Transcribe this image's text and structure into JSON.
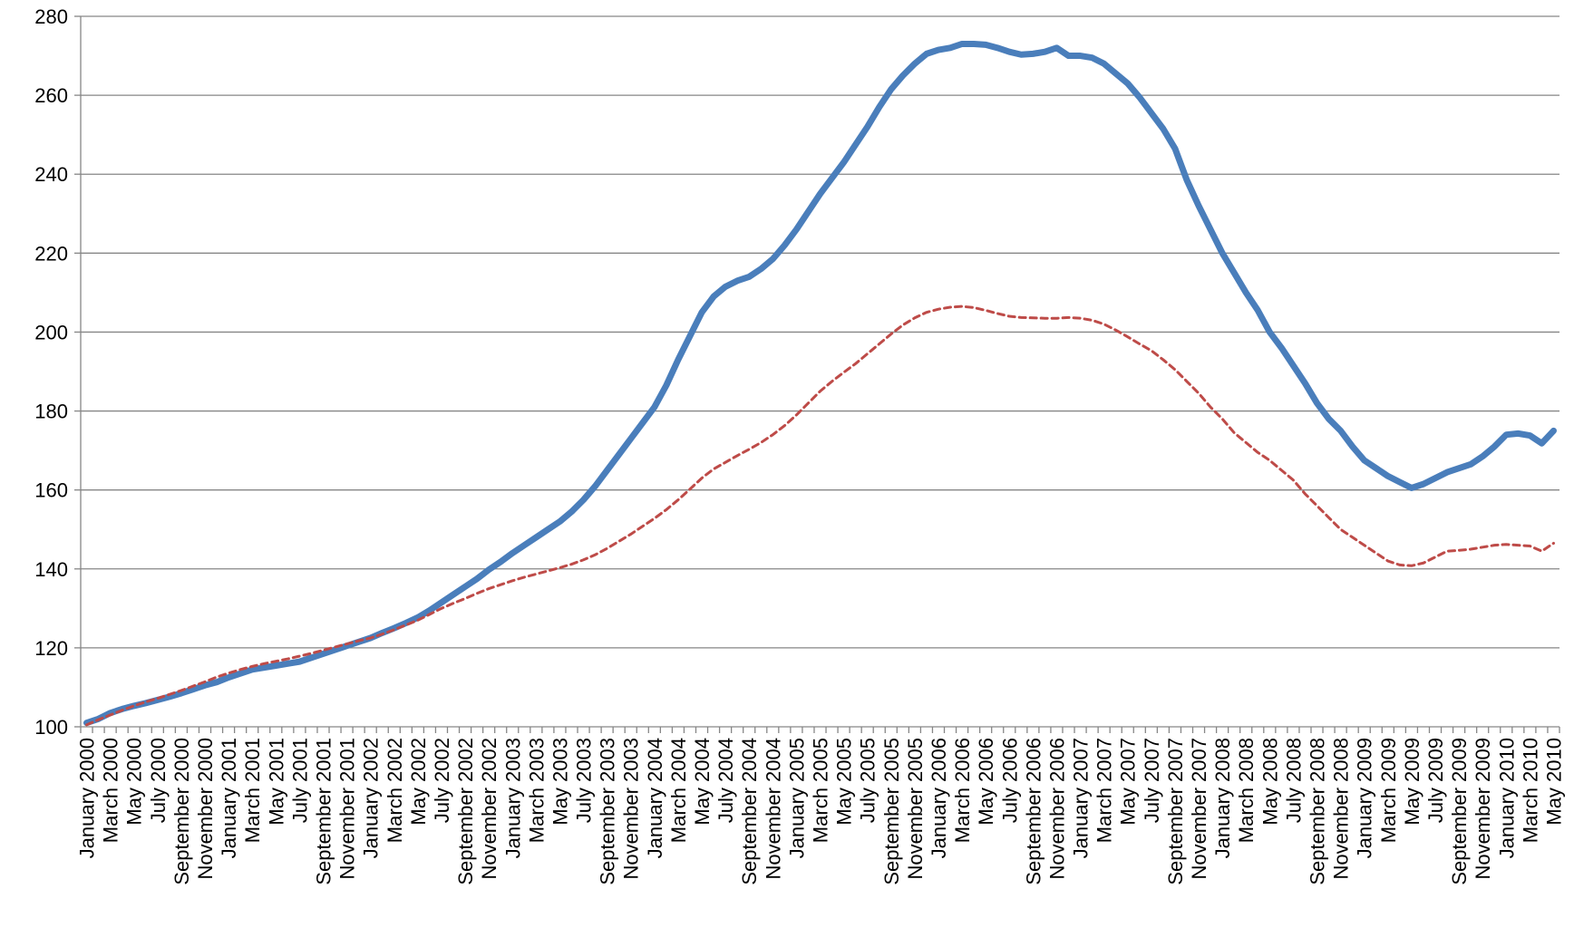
{
  "chart_data": {
    "type": "line",
    "categories": [
      "January 2000",
      null,
      "March 2000",
      null,
      "May 2000",
      null,
      "July 2000",
      null,
      "September 2000",
      null,
      "November 2000",
      null,
      "January 2001",
      null,
      "March 2001",
      null,
      "May 2001",
      null,
      "July 2001",
      null,
      "September 2001",
      null,
      "November 2001",
      null,
      "January 2002",
      null,
      "March 2002",
      null,
      "May 2002",
      null,
      "July 2002",
      null,
      "September 2002",
      null,
      "November 2002",
      null,
      "January 2003",
      null,
      "March 2003",
      null,
      "May 2003",
      null,
      "July 2003",
      null,
      "September 2003",
      null,
      "November 2003",
      null,
      "January 2004",
      null,
      "March 2004",
      null,
      "May 2004",
      null,
      "July 2004",
      null,
      "September 2004",
      null,
      "November 2004",
      null,
      "January 2005",
      null,
      "March 2005",
      null,
      "May 2005",
      null,
      "July 2005",
      null,
      "September 2005",
      null,
      "November 2005",
      null,
      "January 2006",
      null,
      "March 2006",
      null,
      "May 2006",
      null,
      "July 2006",
      null,
      "September 2006",
      null,
      "November 2006",
      null,
      "January 2007",
      null,
      "March 2007",
      null,
      "May 2007",
      null,
      "July 2007",
      null,
      "September 2007",
      null,
      "November 2007",
      null,
      "January 2008",
      null,
      "March 2008",
      null,
      "May 2008",
      null,
      "July 2008",
      null,
      "September 2008",
      null,
      "November 2008",
      null,
      "January 2009",
      null,
      "March 2009",
      null,
      "May 2009",
      null,
      "July 2009",
      null,
      "September 2009",
      null,
      "November 2009",
      null,
      "January 2010",
      null,
      "March 2010",
      null,
      "May 2010"
    ],
    "series": [
      {
        "color": "#4a7ebb",
        "dash": false,
        "values": [
          101,
          102,
          103.5,
          104.5,
          105.3,
          106,
          106.8,
          107.6,
          108.5,
          109.5,
          110.5,
          111.3,
          112.5,
          113.5,
          114.5,
          115,
          115.5,
          116,
          116.5,
          117.5,
          118.5,
          119.5,
          120.5,
          121.5,
          122.5,
          123.8,
          125,
          126.3,
          127.7,
          129.5,
          131.5,
          133.5,
          135.5,
          137.5,
          139.8,
          141.8,
          144,
          146,
          148,
          150,
          152,
          154.5,
          157.5,
          161,
          165,
          169,
          173,
          177,
          181,
          186.5,
          193,
          199,
          205,
          209,
          211.5,
          213,
          214,
          216,
          218.5,
          222,
          226,
          230.5,
          235,
          239,
          243,
          247.5,
          252,
          257,
          261.5,
          265,
          268,
          270.5,
          271.5,
          272,
          273,
          273,
          272.8,
          272,
          271,
          270.3,
          270.5,
          271,
          272,
          270,
          270,
          269.5,
          268,
          265.5,
          263,
          259.5,
          255.5,
          251.5,
          246.5,
          238.5,
          232,
          226,
          220,
          215,
          210,
          205.5,
          200,
          196,
          191.5,
          187,
          182,
          178,
          175,
          171,
          167.5,
          165.5,
          163.5,
          162,
          160.5,
          161.5,
          163,
          164.5,
          165.5,
          166.5,
          168.5,
          171,
          174,
          174.3,
          173.8,
          171.8,
          175
        ]
      },
      {
        "color": "#be4b48",
        "dash": true,
        "values": [
          100.5,
          101.8,
          103,
          104.2,
          105.3,
          106.3,
          107.2,
          108.2,
          109.2,
          110.3,
          111.4,
          112.6,
          113.6,
          114.5,
          115.3,
          116,
          116.6,
          117.2,
          117.9,
          118.6,
          119.4,
          120.2,
          121,
          121.8,
          122.5,
          123.5,
          124.6,
          125.8,
          127,
          128.5,
          130,
          131.3,
          132.5,
          133.8,
          135,
          136,
          137,
          137.9,
          138.7,
          139.5,
          140.3,
          141.2,
          142.3,
          143.6,
          145.2,
          147,
          148.8,
          150.8,
          152.8,
          155,
          157.5,
          160.2,
          163,
          165.3,
          167,
          168.7,
          170.3,
          172,
          174,
          176.3,
          179,
          182,
          185,
          187.5,
          189.8,
          192,
          194.5,
          197,
          199.5,
          201.8,
          203.6,
          205,
          205.8,
          206.3,
          206.5,
          206.2,
          205.5,
          204.7,
          204,
          203.7,
          203.6,
          203.5,
          203.5,
          203.7,
          203.5,
          203,
          202,
          200.5,
          198.8,
          197,
          195.3,
          193,
          190.5,
          187.5,
          184.5,
          181,
          178,
          174.5,
          172,
          169.5,
          167.5,
          165,
          162.5,
          159,
          156,
          153,
          150,
          148,
          146,
          144,
          142,
          141,
          140.8,
          141.5,
          143,
          144.5,
          144.7,
          145,
          145.5,
          146,
          146.2,
          146,
          145.8,
          144.5,
          146.5
        ]
      }
    ],
    "ylim": [
      100,
      280
    ],
    "yticks": [
      100,
      120,
      140,
      160,
      180,
      200,
      220,
      240,
      260,
      280
    ],
    "grid": true
  }
}
